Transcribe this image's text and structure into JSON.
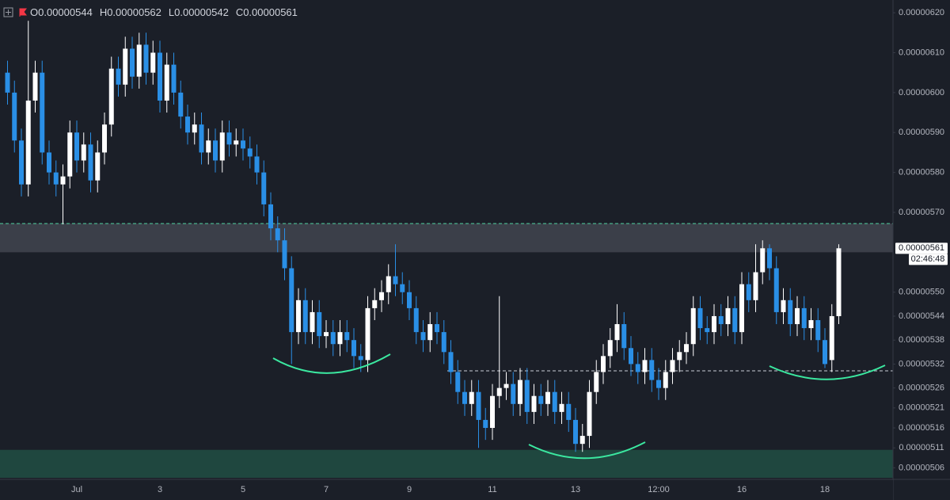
{
  "chart_data": {
    "type": "candlestick",
    "ohlc_header": [
      {
        "label": "O",
        "value": 5.44e-06
      },
      {
        "label": "H",
        "value": 5.62e-06
      },
      {
        "label": "L",
        "value": 5.42e-06
      },
      {
        "label": "C",
        "value": 5.61e-06
      }
    ],
    "countdown": "02:46:48",
    "categories": [
      null,
      null,
      null,
      null,
      null,
      null,
      null,
      null,
      null,
      null,
      "Jul",
      null,
      null,
      null,
      null,
      null,
      null,
      null,
      null,
      null,
      null,
      null,
      "3",
      null,
      null,
      null,
      null,
      null,
      null,
      null,
      null,
      null,
      null,
      null,
      "5",
      null,
      null,
      null,
      null,
      null,
      null,
      null,
      null,
      null,
      null,
      null,
      "7",
      null,
      null,
      null,
      null,
      null,
      null,
      null,
      null,
      null,
      null,
      null,
      "9",
      null,
      null,
      null,
      null,
      null,
      null,
      null,
      null,
      null,
      null,
      null,
      "11",
      null,
      null,
      null,
      null,
      null,
      null,
      null,
      null,
      null,
      null,
      null,
      "13",
      null,
      null,
      null,
      null,
      null,
      null,
      null,
      null,
      null,
      null,
      null,
      "12:00",
      null,
      null,
      null,
      null,
      null,
      null,
      null,
      null,
      null,
      null,
      null,
      "16",
      null,
      null,
      null,
      null,
      null,
      null,
      null,
      null,
      null,
      null,
      null,
      "18",
      null,
      null
    ],
    "open": [
      6.05e-06,
      6e-06,
      5.88e-06,
      5.77e-06,
      5.98e-06,
      6.05e-06,
      5.85e-06,
      5.8e-06,
      5.77e-06,
      5.79e-06,
      5.9e-06,
      5.83e-06,
      5.87e-06,
      5.78e-06,
      5.85e-06,
      5.92e-06,
      6.06e-06,
      6.02e-06,
      6.11e-06,
      6.04e-06,
      6.12e-06,
      6.05e-06,
      6.1e-06,
      5.98e-06,
      6.07e-06,
      6e-06,
      5.94e-06,
      5.9e-06,
      5.92e-06,
      5.85e-06,
      5.88e-06,
      5.83e-06,
      5.9e-06,
      5.87e-06,
      5.88e-06,
      5.86e-06,
      5.84e-06,
      5.8e-06,
      5.72e-06,
      5.66e-06,
      5.63e-06,
      5.56e-06,
      5.4e-06,
      5.48e-06,
      5.4e-06,
      5.45e-06,
      5.39e-06,
      5.4e-06,
      5.37e-06,
      5.4e-06,
      5.38e-06,
      5.34e-06,
      5.33e-06,
      5.46e-06,
      5.48e-06,
      5.5e-06,
      5.54e-06,
      5.52e-06,
      5.5e-06,
      5.46e-06,
      5.4e-06,
      5.38e-06,
      5.42e-06,
      5.4e-06,
      5.35e-06,
      5.3e-06,
      5.25e-06,
      5.22e-06,
      5.25e-06,
      5.18e-06,
      5.16e-06,
      5.24e-06,
      5.26e-06,
      5.27e-06,
      5.22e-06,
      5.28e-06,
      5.2e-06,
      5.24e-06,
      5.22e-06,
      5.25e-06,
      5.2e-06,
      5.22e-06,
      5.18e-06,
      5.12e-06,
      5.14e-06,
      5.25e-06,
      5.3e-06,
      5.34e-06,
      5.38e-06,
      5.42e-06,
      5.36e-06,
      5.32e-06,
      5.3e-06,
      5.33e-06,
      5.28e-06,
      5.26e-06,
      5.3e-06,
      5.33e-06,
      5.35e-06,
      5.37e-06,
      5.46e-06,
      5.41e-06,
      5.4e-06,
      5.44e-06,
      5.42e-06,
      5.46e-06,
      5.4e-06,
      5.52e-06,
      5.48e-06,
      5.55e-06,
      5.61e-06,
      5.56e-06,
      5.45e-06,
      5.48e-06,
      5.42e-06,
      5.46e-06,
      5.41e-06,
      5.43e-06,
      5.38e-06,
      5.33e-06,
      5.44e-06
    ],
    "high": [
      6.08e-06,
      6.03e-06,
      5.91e-06,
      6.18e-06,
      6.08e-06,
      6.08e-06,
      5.88e-06,
      5.83e-06,
      5.82e-06,
      5.93e-06,
      5.93e-06,
      5.9e-06,
      5.9e-06,
      5.88e-06,
      5.95e-06,
      6.09e-06,
      6.09e-06,
      6.14e-06,
      6.14e-06,
      6.15e-06,
      6.15e-06,
      6.13e-06,
      6.13e-06,
      6.1e-06,
      6.1e-06,
      6.03e-06,
      5.97e-06,
      5.95e-06,
      5.95e-06,
      5.91e-06,
      5.91e-06,
      5.93e-06,
      5.93e-06,
      5.91e-06,
      5.91e-06,
      5.89e-06,
      5.87e-06,
      5.83e-06,
      5.75e-06,
      5.69e-06,
      5.66e-06,
      5.59e-06,
      5.51e-06,
      5.51e-06,
      5.48e-06,
      5.48e-06,
      5.43e-06,
      5.43e-06,
      5.43e-06,
      5.43e-06,
      5.41e-06,
      5.37e-06,
      5.49e-06,
      5.51e-06,
      5.53e-06,
      5.57e-06,
      5.62e-06,
      5.55e-06,
      5.53e-06,
      5.49e-06,
      5.43e-06,
      5.45e-06,
      5.45e-06,
      5.43e-06,
      5.38e-06,
      5.33e-06,
      5.28e-06,
      5.28e-06,
      5.28e-06,
      5.21e-06,
      5.27e-06,
      5.49e-06,
      5.3e-06,
      5.3e-06,
      5.31e-06,
      5.31e-06,
      5.27e-06,
      5.27e-06,
      5.28e-06,
      5.28e-06,
      5.25e-06,
      5.25e-06,
      5.21e-06,
      5.17e-06,
      5.28e-06,
      5.33e-06,
      5.37e-06,
      5.41e-06,
      5.47e-06,
      5.45e-06,
      5.39e-06,
      5.35e-06,
      5.36e-06,
      5.36e-06,
      5.31e-06,
      5.33e-06,
      5.36e-06,
      5.38e-06,
      5.4e-06,
      5.49e-06,
      5.49e-06,
      5.44e-06,
      5.47e-06,
      5.47e-06,
      5.49e-06,
      5.49e-06,
      5.55e-06,
      5.55e-06,
      5.62e-06,
      5.63e-06,
      5.62e-06,
      5.59e-06,
      5.51e-06,
      5.51e-06,
      5.49e-06,
      5.49e-06,
      5.46e-06,
      5.46e-06,
      5.41e-06,
      5.47e-06,
      5.62e-06
    ],
    "low": [
      5.97e-06,
      5.85e-06,
      5.74e-06,
      5.74e-06,
      5.95e-06,
      5.82e-06,
      5.77e-06,
      5.74e-06,
      5.67e-06,
      5.76e-06,
      5.8e-06,
      5.8e-06,
      5.75e-06,
      5.75e-06,
      5.82e-06,
      5.89e-06,
      5.99e-06,
      5.99e-06,
      6.01e-06,
      6.01e-06,
      6.02e-06,
      6.02e-06,
      5.95e-06,
      5.95e-06,
      5.97e-06,
      5.91e-06,
      5.87e-06,
      5.87e-06,
      5.82e-06,
      5.82e-06,
      5.8e-06,
      5.8e-06,
      5.84e-06,
      5.84e-06,
      5.83e-06,
      5.81e-06,
      5.77e-06,
      5.69e-06,
      5.63e-06,
      5.6e-06,
      5.53e-06,
      5.32e-06,
      5.37e-06,
      5.37e-06,
      5.37e-06,
      5.36e-06,
      5.36e-06,
      5.34e-06,
      5.34e-06,
      5.35e-06,
      5.31e-06,
      5.3e-06,
      5.3e-06,
      5.43e-06,
      5.45e-06,
      5.47e-06,
      5.49e-06,
      5.47e-06,
      5.43e-06,
      5.37e-06,
      5.35e-06,
      5.35e-06,
      5.37e-06,
      5.32e-06,
      5.27e-06,
      5.22e-06,
      5.19e-06,
      5.19e-06,
      5.11e-06,
      5.13e-06,
      5.13e-06,
      5.21e-06,
      5.23e-06,
      5.19e-06,
      5.19e-06,
      5.17e-06,
      5.17e-06,
      5.19e-06,
      5.19e-06,
      5.17e-06,
      5.17e-06,
      5.15e-06,
      5.1e-06,
      5.1e-06,
      5.11e-06,
      5.22e-06,
      5.27e-06,
      5.31e-06,
      5.35e-06,
      5.33e-06,
      5.29e-06,
      5.27e-06,
      5.27e-06,
      5.25e-06,
      5.23e-06,
      5.23e-06,
      5.27e-06,
      5.3e-06,
      5.32e-06,
      5.34e-06,
      5.38e-06,
      5.37e-06,
      5.37e-06,
      5.39e-06,
      5.39e-06,
      5.37e-06,
      5.37e-06,
      5.45e-06,
      5.45e-06,
      5.52e-06,
      5.53e-06,
      5.42e-06,
      5.42e-06,
      5.39e-06,
      5.39e-06,
      5.38e-06,
      5.38e-06,
      5.35e-06,
      5.31e-06,
      5.3e-06,
      5.42e-06
    ],
    "close": [
      6e-06,
      5.88e-06,
      5.77e-06,
      5.98e-06,
      6.05e-06,
      5.85e-06,
      5.8e-06,
      5.77e-06,
      5.79e-06,
      5.9e-06,
      5.83e-06,
      5.87e-06,
      5.78e-06,
      5.85e-06,
      5.92e-06,
      6.06e-06,
      6.02e-06,
      6.11e-06,
      6.04e-06,
      6.12e-06,
      6.05e-06,
      6.1e-06,
      5.98e-06,
      6.07e-06,
      6e-06,
      5.94e-06,
      5.9e-06,
      5.92e-06,
      5.85e-06,
      5.88e-06,
      5.83e-06,
      5.9e-06,
      5.87e-06,
      5.88e-06,
      5.86e-06,
      5.84e-06,
      5.8e-06,
      5.72e-06,
      5.66e-06,
      5.63e-06,
      5.56e-06,
      5.4e-06,
      5.48e-06,
      5.4e-06,
      5.45e-06,
      5.39e-06,
      5.4e-06,
      5.37e-06,
      5.4e-06,
      5.38e-06,
      5.34e-06,
      5.33e-06,
      5.46e-06,
      5.48e-06,
      5.5e-06,
      5.54e-06,
      5.52e-06,
      5.5e-06,
      5.46e-06,
      5.4e-06,
      5.38e-06,
      5.42e-06,
      5.4e-06,
      5.35e-06,
      5.3e-06,
      5.25e-06,
      5.22e-06,
      5.25e-06,
      5.18e-06,
      5.16e-06,
      5.24e-06,
      5.26e-06,
      5.27e-06,
      5.22e-06,
      5.28e-06,
      5.2e-06,
      5.24e-06,
      5.22e-06,
      5.25e-06,
      5.2e-06,
      5.22e-06,
      5.18e-06,
      5.12e-06,
      5.14e-06,
      5.25e-06,
      5.3e-06,
      5.34e-06,
      5.38e-06,
      5.42e-06,
      5.36e-06,
      5.32e-06,
      5.3e-06,
      5.33e-06,
      5.28e-06,
      5.26e-06,
      5.3e-06,
      5.33e-06,
      5.35e-06,
      5.37e-06,
      5.46e-06,
      5.41e-06,
      5.4e-06,
      5.44e-06,
      5.42e-06,
      5.46e-06,
      5.4e-06,
      5.52e-06,
      5.48e-06,
      5.55e-06,
      5.61e-06,
      5.56e-06,
      5.45e-06,
      5.48e-06,
      5.42e-06,
      5.46e-06,
      5.41e-06,
      5.43e-06,
      5.38e-06,
      5.32e-06,
      5.44e-06,
      5.61e-06
    ],
    "up_color": "#ffffff",
    "down_color": "#2a8fe6",
    "ylim": [
      5.031e-06,
      6.232e-06
    ],
    "yticks": [
      {
        "value": 6.2e-06,
        "label": "0.00000620"
      },
      {
        "value": 6.1e-06,
        "label": "0.00000610"
      },
      {
        "value": 6e-06,
        "label": "0.00000600"
      },
      {
        "value": 5.9e-06,
        "label": "0.00000590"
      },
      {
        "value": 5.8e-06,
        "label": "0.00000580"
      },
      {
        "value": 5.7e-06,
        "label": "0.00000570"
      },
      {
        "value": 5.5e-06,
        "label": "0.00000550"
      },
      {
        "value": 5.44e-06,
        "label": "0.00000544"
      },
      {
        "value": 5.38e-06,
        "label": "0.00000538"
      },
      {
        "value": 5.32e-06,
        "label": "0.00000532"
      },
      {
        "value": 5.26e-06,
        "label": "0.00000526"
      },
      {
        "value": 5.21e-06,
        "label": "0.00000521"
      },
      {
        "value": 5.16e-06,
        "label": "0.00000516"
      },
      {
        "value": 5.11e-06,
        "label": "0.00000511"
      },
      {
        "value": 5.06e-06,
        "label": "0.00000506"
      }
    ],
    "grid": false,
    "zones": [
      {
        "from": 5.6e-06,
        "to": 5.672e-06,
        "color": "rgba(120,123,134,0.35)"
      },
      {
        "from": 5.035e-06,
        "to": 5.105e-06,
        "color": "rgba(38,120,90,0.45)"
      }
    ],
    "levels": [
      {
        "value": 5.672e-06,
        "color": "#4fd1a0"
      },
      {
        "value": 5.303e-06,
        "color": "#c9ccd6"
      }
    ]
  }
}
